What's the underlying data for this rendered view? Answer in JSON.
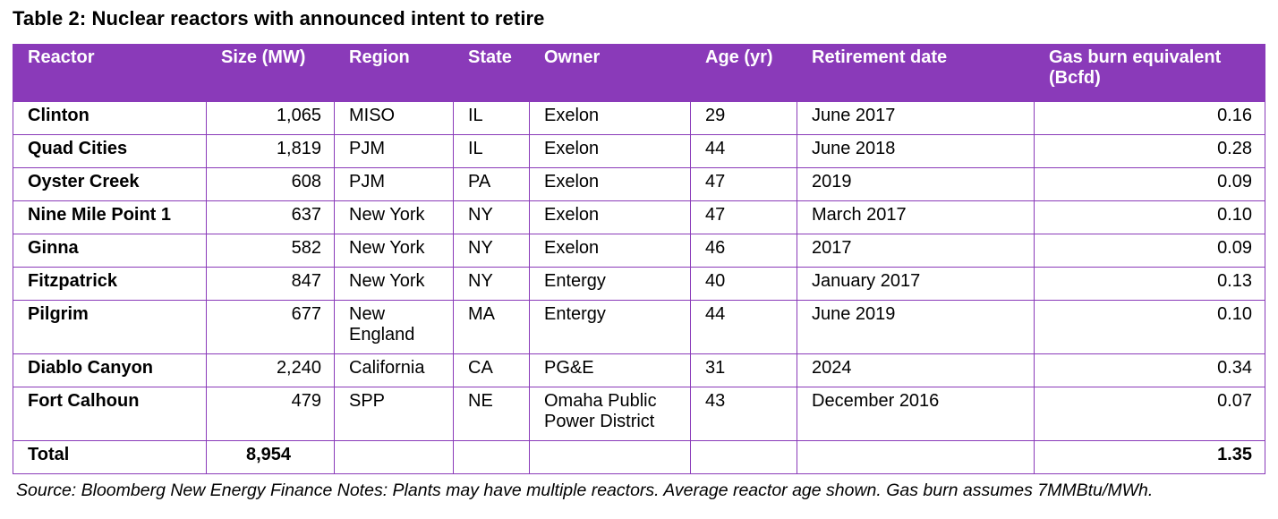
{
  "title": "Table 2: Nuclear reactors with announced intent to retire",
  "headers": {
    "reactor": "Reactor",
    "size": "Size (MW)",
    "region": "Region",
    "state": "State",
    "owner": "Owner",
    "age": "Age (yr)",
    "retirement": "Retirement date",
    "gas_line1": "Gas burn equivalent",
    "gas_line2": "(Bcfd)"
  },
  "rows": [
    {
      "reactor": "Clinton",
      "size": "1,065",
      "region": "MISO",
      "region2": "",
      "state": "IL",
      "owner": "Exelon",
      "owner2": "",
      "age": "29",
      "retirement": "June 2017",
      "gas": "0.16"
    },
    {
      "reactor": "Quad Cities",
      "size": "1,819",
      "region": "PJM",
      "region2": "",
      "state": "IL",
      "owner": "Exelon",
      "owner2": "",
      "age": "44",
      "retirement": "June 2018",
      "gas": "0.28"
    },
    {
      "reactor": "Oyster Creek",
      "size": "608",
      "region": "PJM",
      "region2": "",
      "state": "PA",
      "owner": "Exelon",
      "owner2": "",
      "age": "47",
      "retirement": "2019",
      "gas": "0.09"
    },
    {
      "reactor": "Nine Mile Point 1",
      "size": "637",
      "region": "New York",
      "region2": "",
      "state": "NY",
      "owner": "Exelon",
      "owner2": "",
      "age": "47",
      "retirement": "March 2017",
      "gas": "0.10"
    },
    {
      "reactor": "Ginna",
      "size": "582",
      "region": "New York",
      "region2": "",
      "state": "NY",
      "owner": "Exelon",
      "owner2": "",
      "age": "46",
      "retirement": "2017",
      "gas": "0.09"
    },
    {
      "reactor": "Fitzpatrick",
      "size": "847",
      "region": "New York",
      "region2": "",
      "state": "NY",
      "owner": "Entergy",
      "owner2": "",
      "age": "40",
      "retirement": "January 2017",
      "gas": "0.13"
    },
    {
      "reactor": "Pilgrim",
      "size": "677",
      "region": "New",
      "region2": "England",
      "state": "MA",
      "owner": "Entergy",
      "owner2": "",
      "age": "44",
      "retirement": "June 2019",
      "gas": "0.10"
    },
    {
      "reactor": "Diablo Canyon",
      "size": "2,240",
      "region": "California",
      "region2": "",
      "state": "CA",
      "owner": "PG&E",
      "owner2": "",
      "age": "31",
      "retirement": "2024",
      "gas": "0.34"
    },
    {
      "reactor": "Fort Calhoun",
      "size": "479",
      "region": "SPP",
      "region2": "",
      "state": "NE",
      "owner": "Omaha Public",
      "owner2": "Power District",
      "age": "43",
      "retirement": "December 2016",
      "gas": "0.07"
    }
  ],
  "total": {
    "label": "Total",
    "size": "8,954",
    "gas": "1.35"
  },
  "note": "Source: Bloomberg New Energy Finance Notes: Plants may have multiple reactors. Average reactor age shown. Gas burn assumes 7MMBtu/MWh.",
  "colors": {
    "header_bg": "#8a3ab9",
    "border": "#8a3ab9"
  }
}
